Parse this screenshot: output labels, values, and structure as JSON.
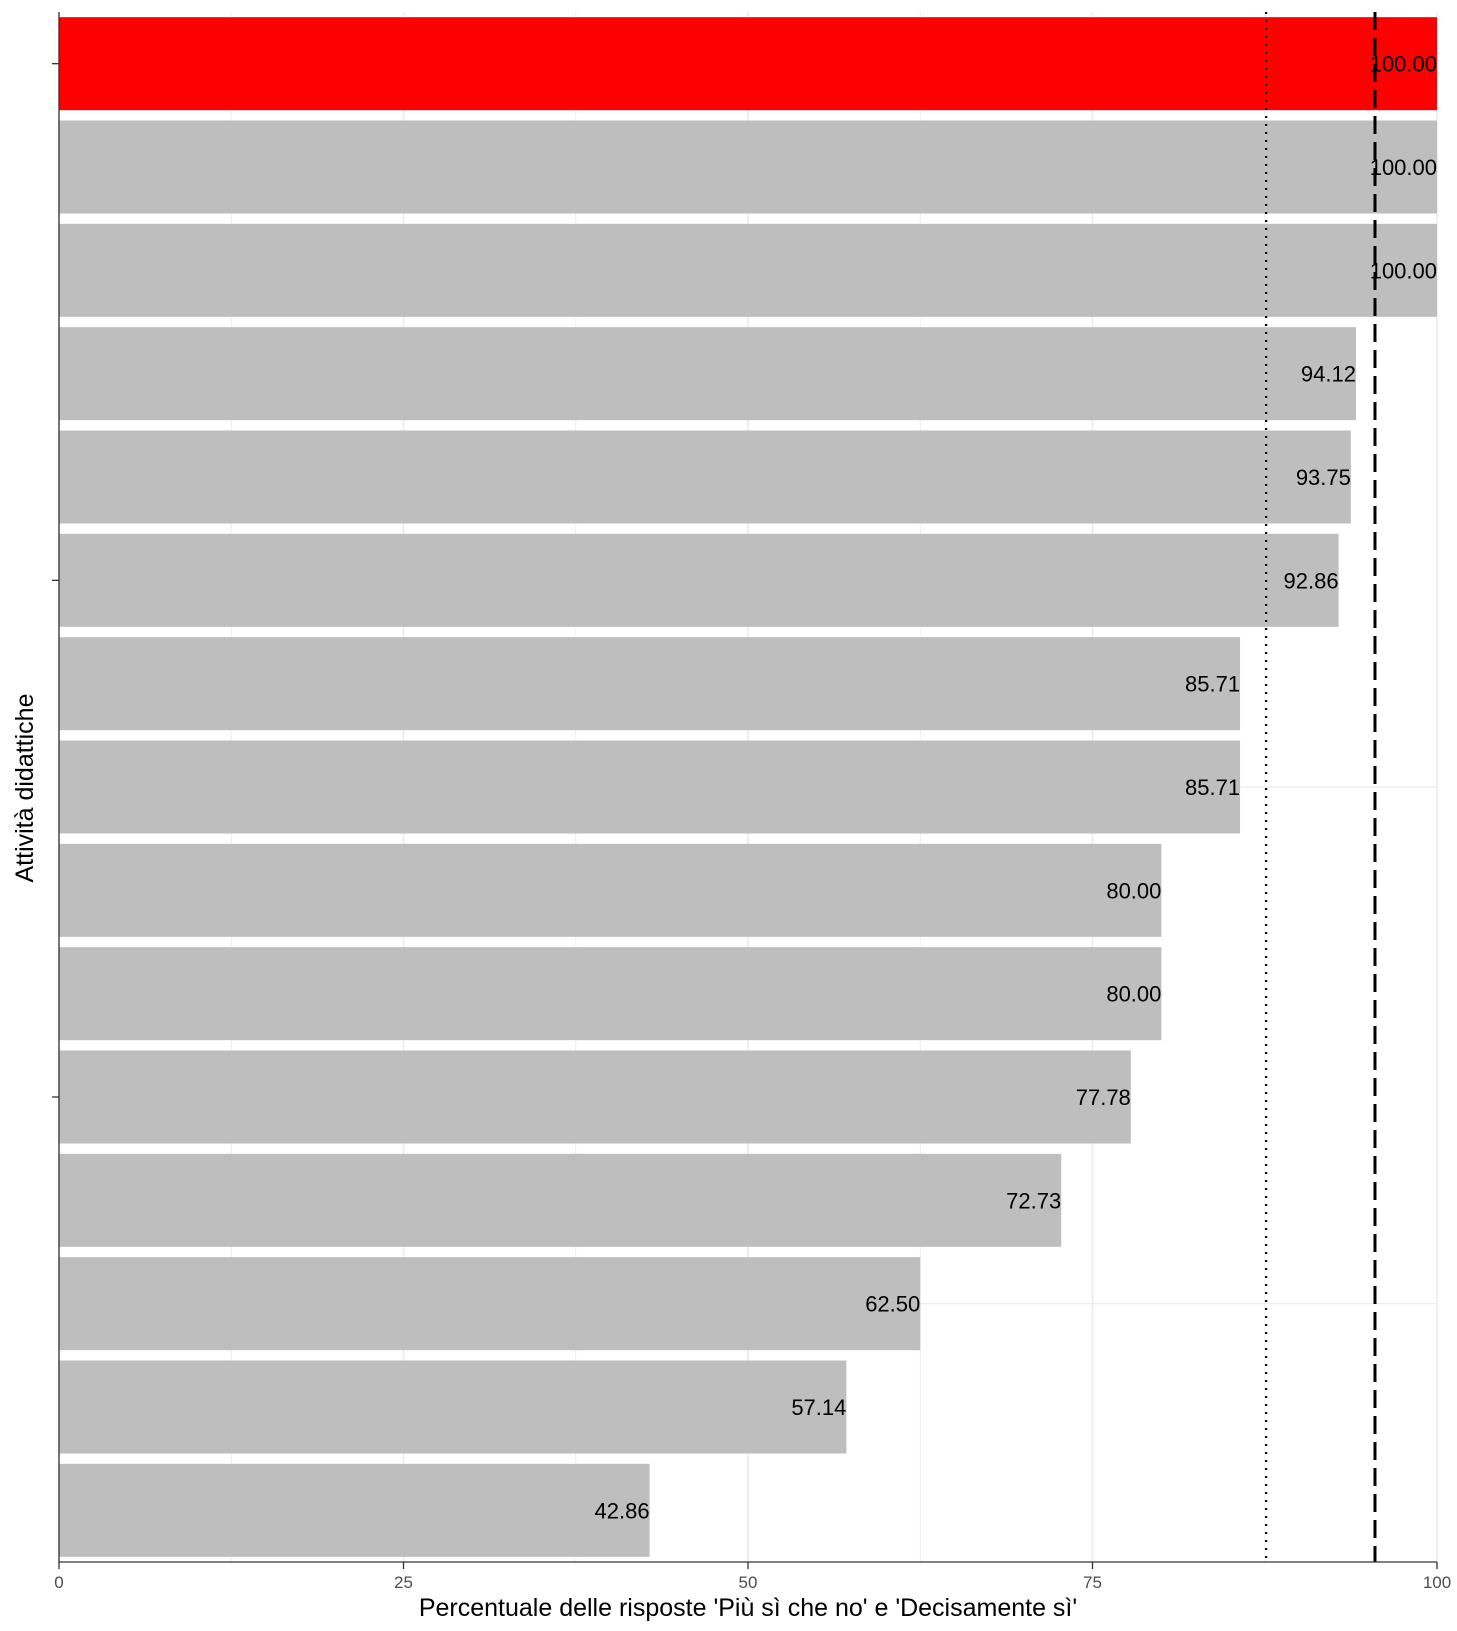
{
  "chart_data": {
    "type": "bar",
    "orientation": "horizontal",
    "title": "",
    "xlabel": "Percentuale delle risposte 'Più sì che no' e 'Decisamente sì'",
    "ylabel": "Attività didattiche",
    "xlim": [
      0,
      100
    ],
    "xticks": [
      0,
      25,
      50,
      75,
      100
    ],
    "xtick_labels": [
      "0",
      "25",
      "50",
      "75",
      "100"
    ],
    "values": [
      100.0,
      100.0,
      100.0,
      94.12,
      93.75,
      92.86,
      85.71,
      85.71,
      80.0,
      80.0,
      77.78,
      72.73,
      62.5,
      57.14,
      42.86
    ],
    "value_labels": [
      "100.00",
      "100.00",
      "100.00",
      "94.12",
      "93.75",
      "92.86",
      "85.71",
      "85.71",
      "80.00",
      "80.00",
      "77.78",
      "72.73",
      "62.50",
      "57.14",
      "42.86"
    ],
    "highlighted_index": 0,
    "reference_lines": [
      {
        "style": "dotted",
        "x": 87.6
      },
      {
        "style": "dashed",
        "x": 95.5
      }
    ],
    "grid": true,
    "legend": "none",
    "colors": {
      "highlight": "#ff0000",
      "bar": "#bebebe",
      "grid": "#ebebeb",
      "reference_line": "#000000",
      "text": "#000000",
      "tick_text": "#4d4d4d"
    }
  }
}
